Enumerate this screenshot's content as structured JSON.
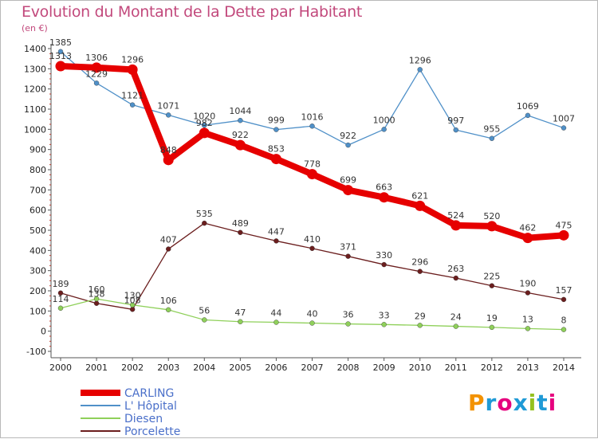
{
  "title": "Evolution du Montant de la Dette par Habitant",
  "unit": "(en €)",
  "brand": "Proxiti",
  "brand_colors": [
    "#f39200",
    "#1f9ad6",
    "#e6007e",
    "#1f9ad6",
    "#95c11f",
    "#1f9ad6",
    "#e6007e"
  ],
  "chart_data": {
    "type": "line",
    "x": [
      "2000",
      "2001",
      "2002",
      "2003",
      "2004",
      "2005",
      "2006",
      "2007",
      "2008",
      "2009",
      "2010",
      "2011",
      "2012",
      "2013",
      "2014"
    ],
    "y_ticks": [
      "-100",
      "0",
      "100",
      "200",
      "300",
      "400",
      "500",
      "600",
      "700",
      "800",
      "900",
      "1000",
      "1100",
      "1200",
      "1300",
      "1400"
    ],
    "ylim": [
      -100,
      1400
    ],
    "grid": false,
    "legend_position": "bottom-left",
    "series": [
      {
        "name": "CARLING",
        "color": "#e60000",
        "values": [
          1313,
          1306,
          1296,
          848,
          982,
          922,
          853,
          778,
          699,
          663,
          621,
          524,
          520,
          462,
          475
        ]
      },
      {
        "name": "L' Hôpital",
        "color": "#4f90c8",
        "values": [
          1385,
          1229,
          1121,
          1071,
          1020,
          1044,
          999,
          1016,
          922,
          1000,
          1296,
          997,
          955,
          1069,
          1007
        ]
      },
      {
        "name": "Diesen",
        "color": "#8fd05a",
        "values": [
          114,
          160,
          130,
          106,
          56,
          47,
          44,
          40,
          36,
          33,
          29,
          24,
          19,
          13,
          8
        ]
      },
      {
        "name": "Porcelette",
        "color": "#6b1e1e",
        "values": [
          189,
          138,
          108,
          407,
          535,
          489,
          447,
          410,
          371,
          330,
          296,
          263,
          225,
          190,
          157
        ]
      }
    ]
  }
}
